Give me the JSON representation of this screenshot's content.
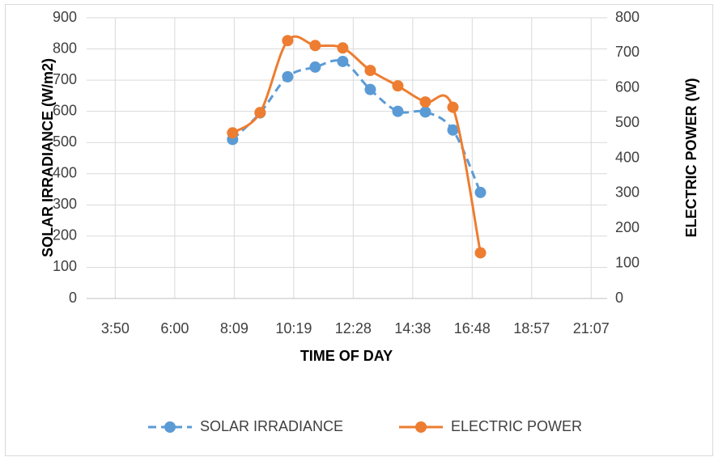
{
  "chart_data": {
    "type": "line",
    "x_label": "TIME OF DAY",
    "y_label": "SOLAR IRRADIANCE (W/m2)",
    "y2_label": "ELECTRIC POWER (W)",
    "x": [
      8.1,
      9.1,
      10.1,
      11.1,
      12.1,
      13.1,
      14.1,
      15.1,
      16.1,
      17.1
    ],
    "xlim": [
      2.8,
      21.7
    ],
    "xticks": [
      {
        "value": 3.84,
        "label": "3:50"
      },
      {
        "value": 6.0,
        "label": "6:00"
      },
      {
        "value": 8.16,
        "label": "8:09"
      },
      {
        "value": 10.32,
        "label": "10:19"
      },
      {
        "value": 12.48,
        "label": "12:28"
      },
      {
        "value": 14.64,
        "label": "14:38"
      },
      {
        "value": 16.8,
        "label": "16:48"
      },
      {
        "value": 18.96,
        "label": "18:57"
      },
      {
        "value": 21.12,
        "label": "21:07"
      }
    ],
    "ylim": [
      0,
      900
    ],
    "yticks": [
      0,
      100,
      200,
      300,
      400,
      500,
      600,
      700,
      800,
      900
    ],
    "y2lim": [
      0,
      800
    ],
    "y2ticks": [
      0,
      100,
      200,
      300,
      400,
      500,
      600,
      700,
      800
    ],
    "grid": true,
    "smooth": true,
    "legend": "bottom",
    "series": [
      {
        "name": "SOLAR IRRADIANCE",
        "color": "#5b9bd5",
        "dash": true,
        "values": [
          510,
          595,
          711,
          742,
          760,
          670,
          600,
          598,
          540,
          340
        ]
      },
      {
        "name": "ELECTRIC POWER",
        "color": "#ed7d31",
        "axis": "y2",
        "dash": false,
        "values": [
          472,
          530,
          735,
          721,
          714,
          650,
          606,
          560,
          545,
          130
        ]
      }
    ]
  }
}
